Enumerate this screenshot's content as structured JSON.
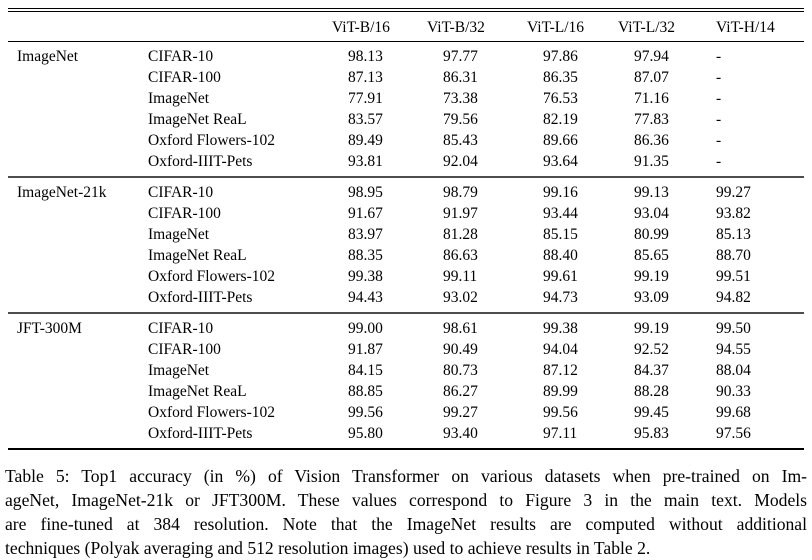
{
  "table": {
    "columns": [
      "ViT-B/16",
      "ViT-B/32",
      "ViT-L/16",
      "ViT-L/32",
      "ViT-H/14"
    ],
    "groups": [
      {
        "pretraining": "ImageNet",
        "rows": [
          {
            "dataset": "CIFAR-10",
            "values": [
              "98.13",
              "97.77",
              "97.86",
              "97.94",
              "-"
            ]
          },
          {
            "dataset": "CIFAR-100",
            "values": [
              "87.13",
              "86.31",
              "86.35",
              "87.07",
              "-"
            ]
          },
          {
            "dataset": "ImageNet",
            "values": [
              "77.91",
              "73.38",
              "76.53",
              "71.16",
              "-"
            ]
          },
          {
            "dataset": "ImageNet ReaL",
            "values": [
              "83.57",
              "79.56",
              "82.19",
              "77.83",
              "-"
            ]
          },
          {
            "dataset": "Oxford Flowers-102",
            "values": [
              "89.49",
              "85.43",
              "89.66",
              "86.36",
              "-"
            ]
          },
          {
            "dataset": "Oxford-IIIT-Pets",
            "values": [
              "93.81",
              "92.04",
              "93.64",
              "91.35",
              "-"
            ]
          }
        ]
      },
      {
        "pretraining": "ImageNet-21k",
        "rows": [
          {
            "dataset": "CIFAR-10",
            "values": [
              "98.95",
              "98.79",
              "99.16",
              "99.13",
              "99.27"
            ]
          },
          {
            "dataset": "CIFAR-100",
            "values": [
              "91.67",
              "91.97",
              "93.44",
              "93.04",
              "93.82"
            ]
          },
          {
            "dataset": "ImageNet",
            "values": [
              "83.97",
              "81.28",
              "85.15",
              "80.99",
              "85.13"
            ]
          },
          {
            "dataset": "ImageNet ReaL",
            "values": [
              "88.35",
              "86.63",
              "88.40",
              "85.65",
              "88.70"
            ]
          },
          {
            "dataset": "Oxford Flowers-102",
            "values": [
              "99.38",
              "99.11",
              "99.61",
              "99.19",
              "99.51"
            ]
          },
          {
            "dataset": "Oxford-IIIT-Pets",
            "values": [
              "94.43",
              "93.02",
              "94.73",
              "93.09",
              "94.82"
            ]
          }
        ]
      },
      {
        "pretraining": "JFT-300M",
        "rows": [
          {
            "dataset": "CIFAR-10",
            "values": [
              "99.00",
              "98.61",
              "99.38",
              "99.19",
              "99.50"
            ]
          },
          {
            "dataset": "CIFAR-100",
            "values": [
              "91.87",
              "90.49",
              "94.04",
              "92.52",
              "94.55"
            ]
          },
          {
            "dataset": "ImageNet",
            "values": [
              "84.15",
              "80.73",
              "87.12",
              "84.37",
              "88.04"
            ]
          },
          {
            "dataset": "ImageNet ReaL",
            "values": [
              "88.85",
              "86.27",
              "89.99",
              "88.28",
              "90.33"
            ]
          },
          {
            "dataset": "Oxford Flowers-102",
            "values": [
              "99.56",
              "99.27",
              "99.56",
              "99.45",
              "99.68"
            ]
          },
          {
            "dataset": "Oxford-IIIT-Pets",
            "values": [
              "95.80",
              "93.40",
              "97.11",
              "95.83",
              "97.56"
            ]
          }
        ]
      }
    ]
  },
  "caption": {
    "lines": [
      "Table 5: Top1 accuracy (in %) of Vision Transformer on various datasets when pre-trained on Im-",
      "ageNet, ImageNet-21k or JFT300M. These values correspond to Figure 3 in the main text. Models",
      "are fine-tuned at 384 resolution. Note that the ImageNet results are computed without additional",
      "techniques (Polyak averaging and 512 resolution images) used to achieve results in Table 2."
    ]
  }
}
